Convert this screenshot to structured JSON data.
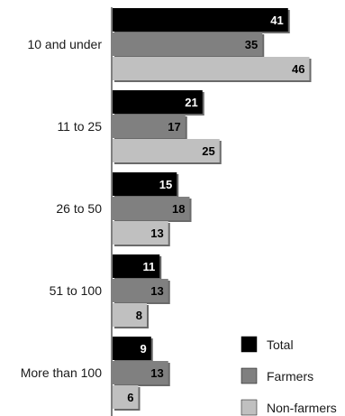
{
  "chart_data": {
    "type": "bar",
    "orientation": "horizontal",
    "categories": [
      "10 and under",
      "11 to 25",
      "26 to 50",
      "51 to 100",
      "More than 100"
    ],
    "series": [
      {
        "name": "Total",
        "color": "#000000",
        "label_color": "#ffffff",
        "values": [
          41,
          21,
          15,
          11,
          9
        ]
      },
      {
        "name": "Farmers",
        "color": "#808080",
        "label_color": "#000000",
        "values": [
          35,
          17,
          18,
          13,
          13
        ]
      },
      {
        "name": "Non-farmers",
        "color": "#c0c0c0",
        "label_color": "#000000",
        "values": [
          46,
          25,
          13,
          8,
          6
        ]
      }
    ],
    "title": "",
    "xlabel": "",
    "ylabel": "",
    "grid": false,
    "legend_position": "bottom-right"
  }
}
